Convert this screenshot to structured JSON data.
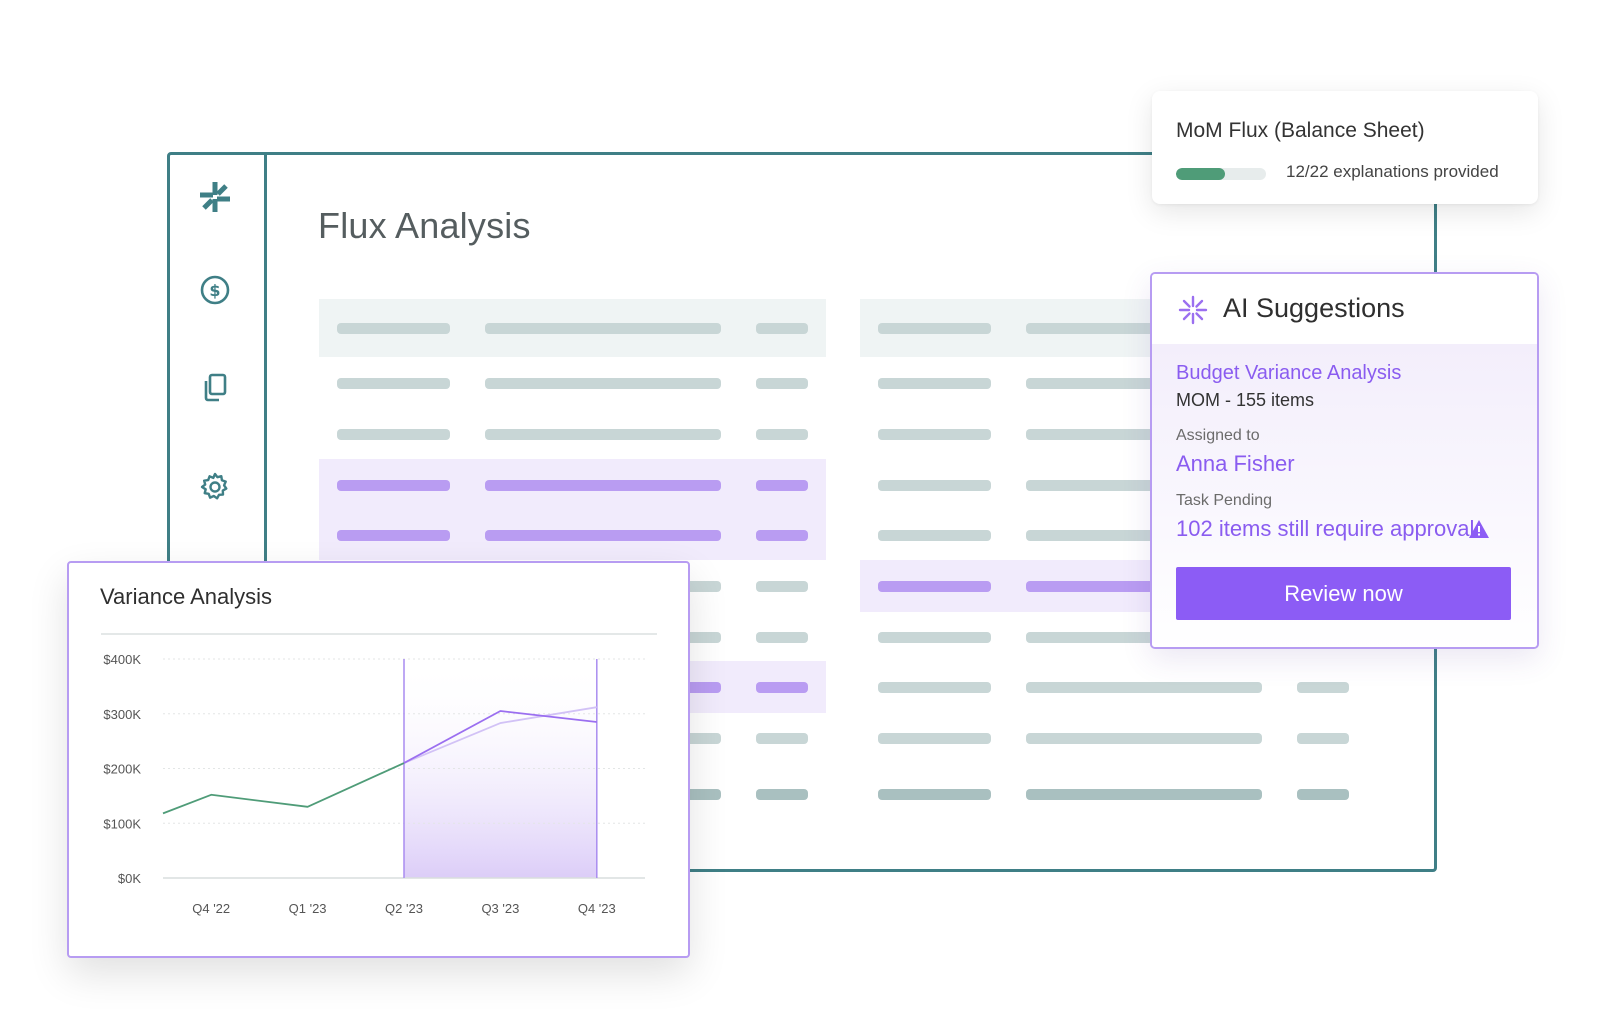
{
  "main": {
    "title": "Flux Analysis",
    "sidebar_icons": [
      "asterisk-logo-icon",
      "dollar-circle-icon",
      "copy-documents-icon",
      "gear-icon"
    ]
  },
  "mom_card": {
    "title": "MoM Flux (Balance Sheet)",
    "progress_fraction": 0.545,
    "status": "12/22 explanations provided",
    "progress_color": "#4f9c78"
  },
  "ai_card": {
    "title": "AI Suggestions",
    "analysis_title": "Budget Variance Analysis",
    "analysis_meta": "MOM - 155 items",
    "assigned_label": "Assigned to",
    "assignee": "Anna Fisher",
    "task_label": "Task Pending",
    "task_value": "102 items still require approval",
    "button_label": "Review now",
    "accent": "#8c5cf5"
  },
  "variance_card": {
    "title": "Variance Analysis"
  },
  "chart_data": {
    "type": "line",
    "title": "Variance Analysis",
    "categories": [
      "Q4 '22",
      "Q1 '23",
      "Q2 '23",
      "Q3 '23",
      "Q4 '23"
    ],
    "ytick_labels": [
      "$400K",
      "$300K",
      "$200K",
      "$100K",
      "$0K"
    ],
    "ylim": [
      0,
      400000
    ],
    "grid": true,
    "x_positions": [
      0,
      0.5,
      1.5,
      2.5,
      3.5,
      4.5
    ],
    "series": [
      {
        "color": "#4f9c78",
        "x": [
          0,
          0.5,
          1.5,
          2.5
        ],
        "values": [
          118000,
          152000,
          130000,
          210000
        ]
      },
      {
        "color": "#9b6ff0",
        "x": [
          2.5,
          3.5,
          4.5
        ],
        "values": [
          210000,
          305000,
          285000
        ]
      },
      {
        "color": "#d2c2f6",
        "x": [
          2.5,
          3.5,
          4.5
        ],
        "values": [
          210000,
          283000,
          312000
        ]
      }
    ],
    "highlight_range": [
      2.5,
      4.5
    ]
  }
}
